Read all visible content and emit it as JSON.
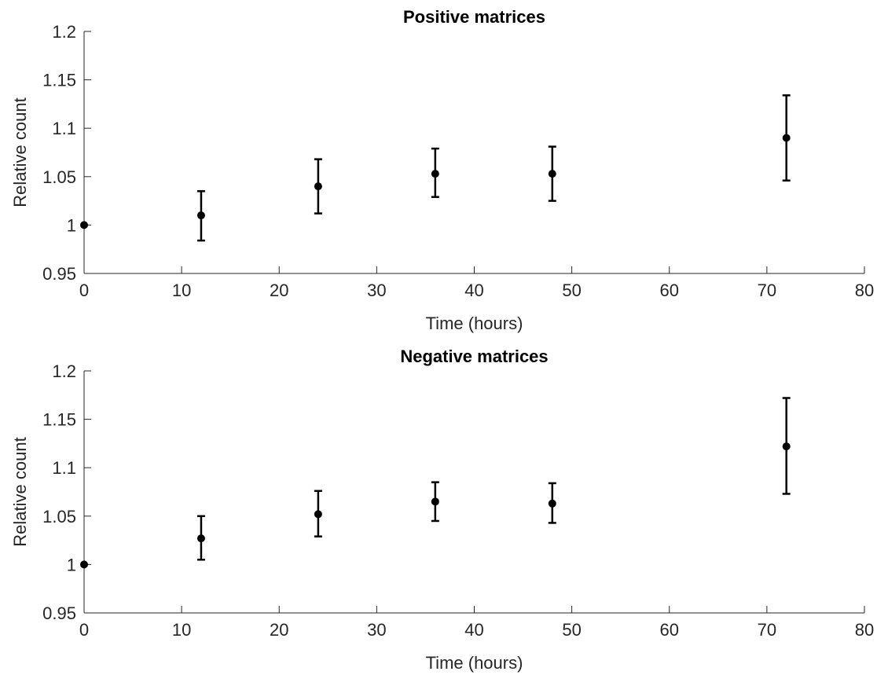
{
  "chart_data": [
    {
      "type": "scatter",
      "title": "Positive matrices",
      "xlabel": "Time (hours)",
      "ylabel": "Relative count",
      "xlim": [
        0,
        80
      ],
      "ylim": [
        0.95,
        1.2
      ],
      "xticks": [
        "0",
        "10",
        "20",
        "30",
        "40",
        "50",
        "60",
        "70",
        "80"
      ],
      "yticks": [
        "0.95",
        "1",
        "1.05",
        "1.1",
        "1.15",
        "1.2"
      ],
      "grid": false,
      "series": [
        {
          "x": [
            0,
            12,
            24,
            36,
            48,
            72
          ],
          "y": [
            1.0,
            1.01,
            1.04,
            1.053,
            1.053,
            1.09
          ],
          "err_low": [
            1.0,
            0.984,
            1.012,
            1.029,
            1.025,
            1.046
          ],
          "err_high": [
            1.0,
            1.035,
            1.068,
            1.079,
            1.081,
            1.134
          ]
        }
      ]
    },
    {
      "type": "scatter",
      "title": "Negative matrices",
      "xlabel": "Time (hours)",
      "ylabel": "Relative count",
      "xlim": [
        0,
        80
      ],
      "ylim": [
        0.95,
        1.2
      ],
      "xticks": [
        "0",
        "10",
        "20",
        "30",
        "40",
        "50",
        "60",
        "70",
        "80"
      ],
      "yticks": [
        "0.95",
        "1",
        "1.05",
        "1.1",
        "1.15",
        "1.2"
      ],
      "grid": false,
      "series": [
        {
          "x": [
            0,
            12,
            24,
            36,
            48,
            72
          ],
          "y": [
            1.0,
            1.027,
            1.052,
            1.065,
            1.063,
            1.122
          ],
          "err_low": [
            1.0,
            1.005,
            1.029,
            1.045,
            1.043,
            1.073
          ],
          "err_high": [
            1.0,
            1.05,
            1.076,
            1.085,
            1.084,
            1.172
          ]
        }
      ]
    }
  ]
}
